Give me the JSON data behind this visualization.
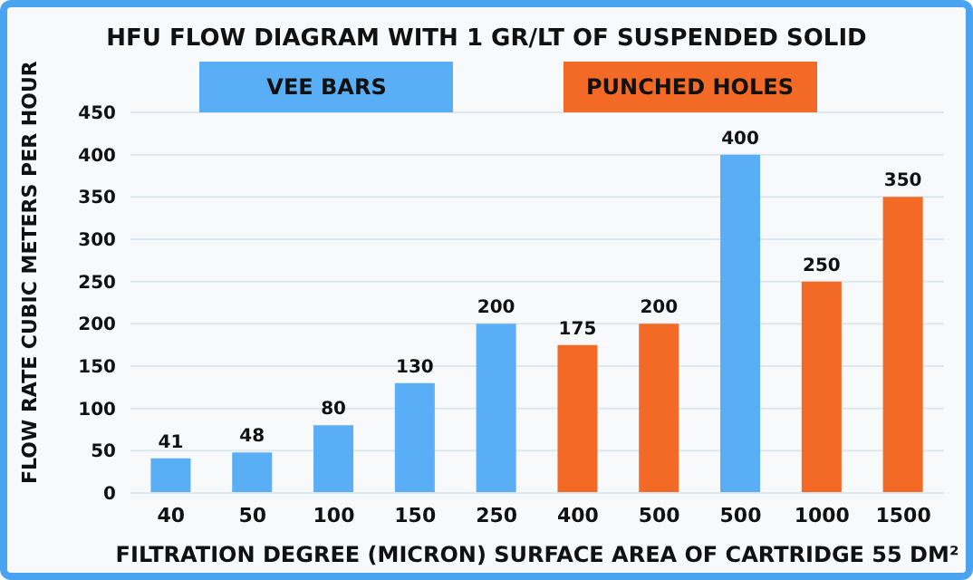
{
  "chart_data": {
    "type": "bar",
    "title": "HFU FLOW DIAGRAM WITH 1 GR/LT OF SUSPENDED SOLID",
    "xlabel": "FILTRATION DEGREE (MICRON) SURFACE AREA OF CARTRIDGE 55 DM²",
    "ylabel": "FLOW RATE CUBIC METERS PER HOUR",
    "categories": [
      "40",
      "50",
      "100",
      "150",
      "250",
      "400",
      "500",
      "500",
      "1000",
      "1500"
    ],
    "series": [
      {
        "name": "VEE BARS",
        "color": "#5aaef5",
        "values": [
          41,
          48,
          80,
          130,
          200,
          null,
          null,
          400,
          null,
          null
        ]
      },
      {
        "name": "PUNCHED HOLES",
        "color": "#f26a25",
        "values": [
          null,
          null,
          null,
          null,
          null,
          175,
          200,
          null,
          250,
          350
        ]
      }
    ],
    "stacked": true,
    "ylim": [
      0,
      450
    ],
    "yticks": [
      0,
      50,
      100,
      150,
      200,
      250,
      300,
      350,
      400,
      450
    ],
    "grid": "y",
    "legend": "top",
    "data_labels": true
  }
}
